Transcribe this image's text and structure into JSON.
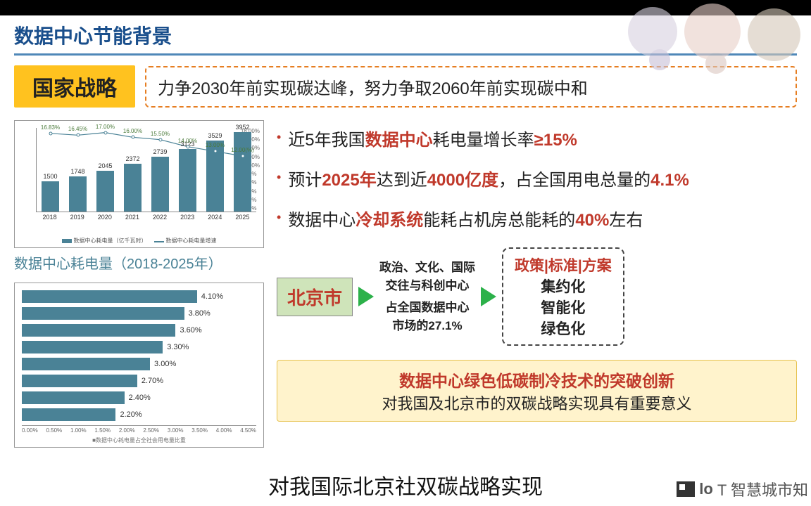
{
  "section_title": "数据中心节能背景",
  "strategy": {
    "badge": "国家战略",
    "text": "力争2030年前实现碳达峰，努力争取2060年前实现碳中和"
  },
  "chart1": {
    "type": "bar-line",
    "categories": [
      "2018",
      "2019",
      "2020",
      "2021",
      "2022",
      "2023",
      "2024",
      "2025"
    ],
    "bar_values": [
      1500,
      1748,
      2045,
      2372,
      2739,
      3123,
      3529,
      3952
    ],
    "bar_color": "#4a8296",
    "line_values": [
      16.83,
      16.45,
      17.0,
      16.0,
      15.5,
      14.0,
      13.0,
      12.0
    ],
    "line_labels": [
      "16.83%",
      "16.45%",
      "17.00%",
      "16.00%",
      "15.50%",
      "14.00%",
      "13.00%",
      "12.00(%)"
    ],
    "line_color": "#4a8296",
    "y_right_ticks": [
      "18.00%",
      "16.00%",
      "14.00%",
      "12.00%",
      "10.00%",
      "8.00%",
      "6.00%",
      "4.00%",
      "2.00%",
      "0.00%"
    ],
    "y_right_max": 18,
    "bar_ymax": 4200,
    "legend": [
      "数据中心耗电量（亿千瓦时）",
      "数据中心耗电量增速"
    ],
    "caption": "数据中心耗电量（2018-2025年）"
  },
  "chart2": {
    "type": "hbar",
    "values": [
      4.1,
      3.8,
      3.6,
      3.3,
      3.0,
      2.7,
      2.4,
      2.2
    ],
    "labels": [
      "4.10%",
      "3.80%",
      "3.60%",
      "3.30%",
      "3.00%",
      "2.70%",
      "2.40%",
      "2.20%"
    ],
    "bar_color": "#4a8296",
    "xmax": 4.5,
    "xticks": [
      "0.00%",
      "0.50%",
      "1.00%",
      "1.50%",
      "2.00%",
      "2.50%",
      "3.00%",
      "3.50%",
      "4.00%",
      "4.50%"
    ],
    "note": "■数据中心耗电量占全社会用电量比重"
  },
  "bullets": [
    [
      {
        "t": "近5年我国",
        "c": "blk"
      },
      {
        "t": "数据中心",
        "c": "red"
      },
      {
        "t": "耗电量增长率",
        "c": "blk"
      },
      {
        "t": "≥15%",
        "c": "red"
      }
    ],
    [
      {
        "t": "预计",
        "c": "blk"
      },
      {
        "t": "2025年",
        "c": "red"
      },
      {
        "t": "达到近",
        "c": "blk"
      },
      {
        "t": "4000亿度",
        "c": "red"
      },
      {
        "t": "，占全国用电总量的",
        "c": "blk"
      },
      {
        "t": "4.1%",
        "c": "red"
      }
    ],
    [
      {
        "t": "数据中心",
        "c": "blk"
      },
      {
        "t": "冷却系统",
        "c": "red"
      },
      {
        "t": "能耗占机房总能耗的",
        "c": "blk"
      },
      {
        "t": "40%",
        "c": "red"
      },
      {
        "t": "左右",
        "c": "blk"
      }
    ]
  ],
  "flow": {
    "badge": "北京市",
    "mid_lines": [
      "政治、文化、国际",
      "交往与科创中心",
      "占全国数据中心",
      "市场的27.1%"
    ],
    "right_top": "政策|标准|方案",
    "right_lines": [
      "集约化",
      "智能化",
      "绿色化"
    ]
  },
  "bottom": {
    "line1": "数据中心绿色低碳制冷技术的突破创新",
    "line2": "对我国及北京市的双碳战略实现具有重要意义"
  },
  "subtitle": "对我国际北京社双碳战略实现",
  "watermark": "T 智慧城市知",
  "colors": {
    "title": "#1a4f8c",
    "badge_bg": "#ffc21f",
    "dashed_border": "#e67e22",
    "red": "#c0392b",
    "arrow": "#2cb14a",
    "bj_bg": "#cfe4ba",
    "callout_bg": "#fff3cc"
  }
}
